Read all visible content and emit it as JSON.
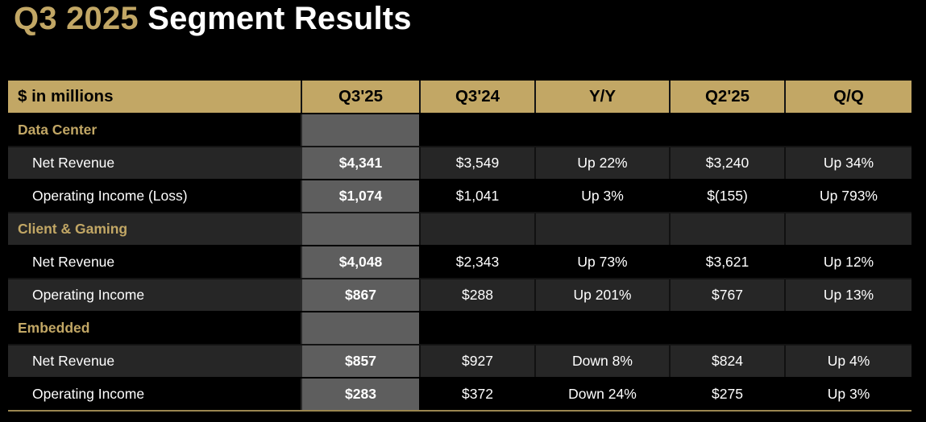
{
  "title": {
    "quarter": "Q3 2025",
    "text": "Segment Results"
  },
  "table": {
    "unit_label": "$ in millions",
    "columns": [
      "Q3'25",
      "Q3'24",
      "Y/Y",
      "Q2'25",
      "Q/Q"
    ],
    "sections": [
      {
        "name": "Data Center",
        "rows": [
          {
            "label": "Net Revenue",
            "values": [
              "$4,341",
              "$3,549",
              "Up 22%",
              "$3,240",
              "Up 34%"
            ]
          },
          {
            "label": "Operating Income (Loss)",
            "values": [
              "$1,074",
              "$1,041",
              "Up 3%",
              "$(155)",
              "Up 793%"
            ]
          }
        ]
      },
      {
        "name": "Client & Gaming",
        "rows": [
          {
            "label": "Net Revenue",
            "values": [
              "$4,048",
              "$2,343",
              "Up 73%",
              "$3,621",
              "Up 12%"
            ]
          },
          {
            "label": "Operating Income",
            "values": [
              "$867",
              "$288",
              "Up 201%",
              "$767",
              "Up 13%"
            ]
          }
        ]
      },
      {
        "name": "Embedded",
        "rows": [
          {
            "label": "Net Revenue",
            "values": [
              "$857",
              "$927",
              "Down 8%",
              "$824",
              "Up 4%"
            ]
          },
          {
            "label": "Operating Income",
            "values": [
              "$283",
              "$372",
              "Down 24%",
              "$275",
              "Up 3%"
            ]
          }
        ]
      }
    ]
  },
  "colors": {
    "accent_gold": "#C2A765",
    "highlight_column_gray": "#5E5E5E",
    "alt_row": "#262626",
    "dark_row": "#000000",
    "bottom_rule_gold": "#9A8650",
    "background": "#000000",
    "text_white": "#FFFFFF",
    "header_text": "#000000"
  }
}
